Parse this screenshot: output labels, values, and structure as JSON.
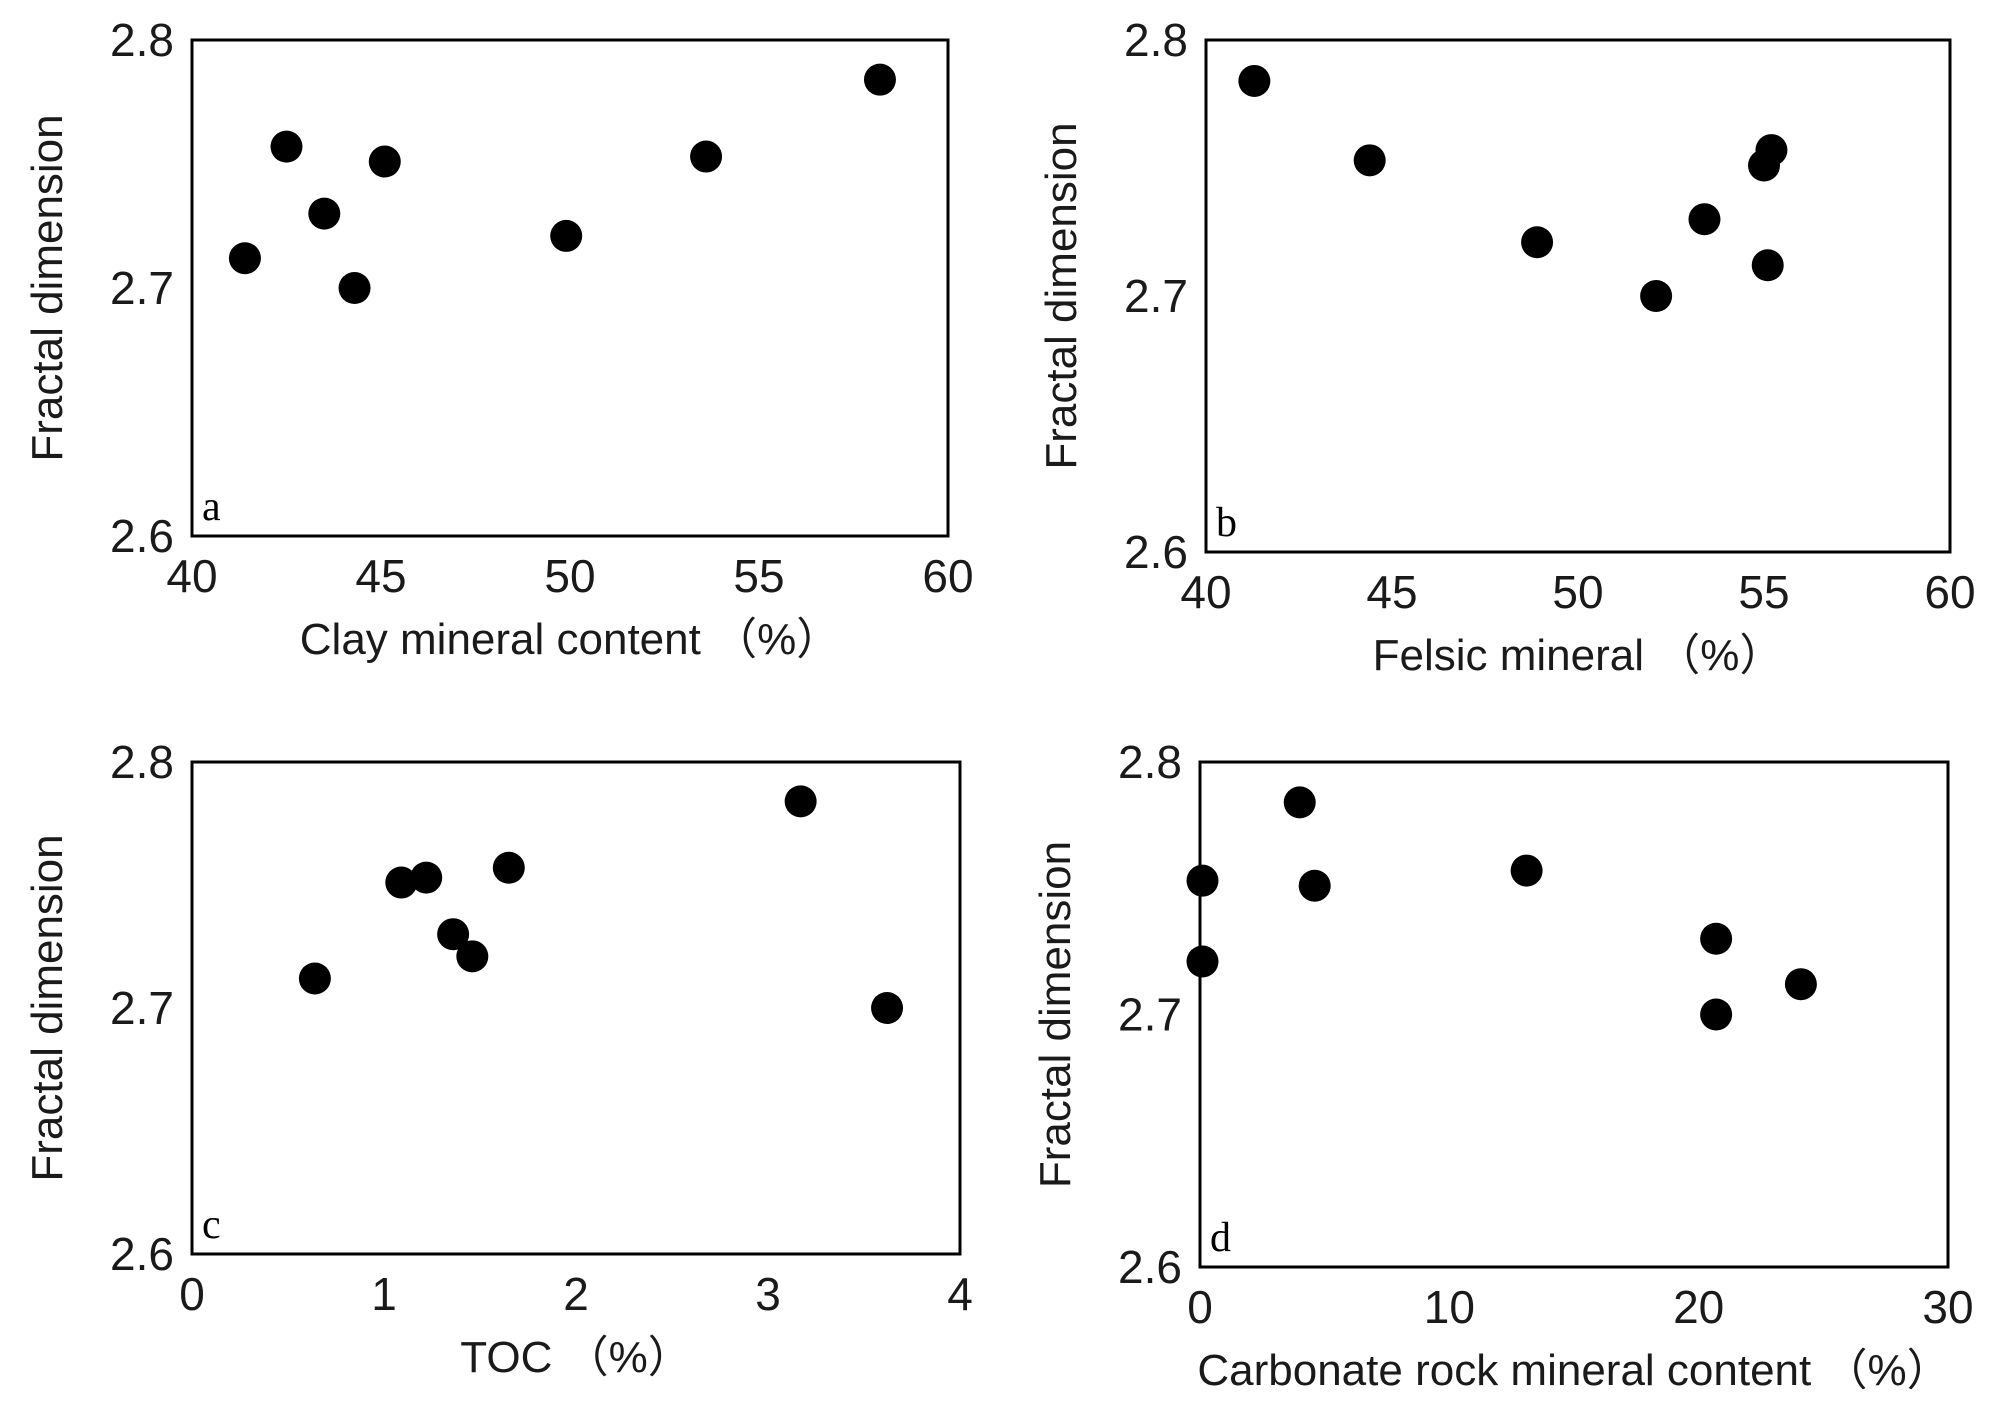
{
  "chart_data": [
    {
      "type": "scatter",
      "panel_label": "a",
      "xlabel": "Clay mineral content （%）",
      "ylabel": "Fractal dimension",
      "xlim": [
        40,
        60
      ],
      "ylim": [
        2.6,
        2.8
      ],
      "xticks": [
        "40",
        "45",
        "50",
        "55",
        "60"
      ],
      "yticks": [
        "2.6",
        "2.7",
        "2.8"
      ],
      "grid": true,
      "x": [
        41.4,
        42.5,
        43.5,
        44.3,
        45.1,
        49.9,
        53.6,
        58.2
      ],
      "y": [
        2.712,
        2.757,
        2.73,
        2.7,
        2.751,
        2.721,
        2.753,
        2.784
      ]
    },
    {
      "type": "scatter",
      "panel_label": "b",
      "xlabel": "Felsic mineral （%）",
      "ylabel": "Fractal dimension",
      "xlim": [
        40,
        60
      ],
      "ylim": [
        2.6,
        2.8
      ],
      "xticks": [
        "40",
        "45",
        "50",
        "55",
        "60"
      ],
      "yticks": [
        "2.6",
        "2.7",
        "2.8"
      ],
      "grid": true,
      "x": [
        41.3,
        44.4,
        48.9,
        52.1,
        53.4,
        55.0,
        55.1,
        55.2
      ],
      "y": [
        2.784,
        2.753,
        2.721,
        2.7,
        2.73,
        2.751,
        2.712,
        2.757
      ]
    },
    {
      "type": "scatter",
      "panel_label": "c",
      "xlabel": "TOC （%）",
      "ylabel": "Fractal dimension",
      "xlim": [
        0,
        4
      ],
      "ylim": [
        2.6,
        2.8
      ],
      "xticks": [
        "0",
        "1",
        "2",
        "3",
        "4"
      ],
      "yticks": [
        "2.6",
        "2.7",
        "2.8"
      ],
      "grid": true,
      "x": [
        0.64,
        1.09,
        1.22,
        1.36,
        1.46,
        1.65,
        3.17,
        3.62
      ],
      "y": [
        2.712,
        2.751,
        2.753,
        2.73,
        2.721,
        2.757,
        2.784,
        2.7
      ]
    },
    {
      "type": "scatter",
      "panel_label": "d",
      "xlabel": "Carbonate rock mineral content （%）",
      "ylabel": "Fractal dimension",
      "xlim": [
        0,
        30
      ],
      "ylim": [
        2.6,
        2.8
      ],
      "xticks": [
        "0",
        "10",
        "20",
        "30"
      ],
      "yticks": [
        "2.6",
        "2.7",
        "2.8"
      ],
      "grid": true,
      "x": [
        0.1,
        0.1,
        4.0,
        4.6,
        13.1,
        20.7,
        20.7,
        24.1
      ],
      "y": [
        2.753,
        2.721,
        2.784,
        2.751,
        2.757,
        2.73,
        2.7,
        2.712
      ]
    }
  ]
}
